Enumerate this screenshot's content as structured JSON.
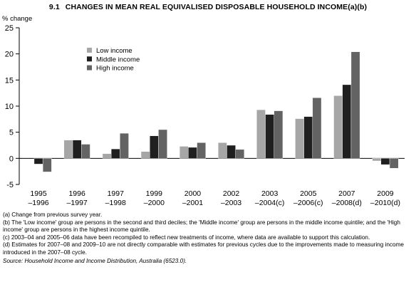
{
  "figure": {
    "number": "9.1",
    "title": "CHANGES IN MEAN REAL EQUIVALISED DISPOSABLE HOUSEHOLD INCOME(a)(b)"
  },
  "chart_data": {
    "type": "bar",
    "title": "CHANGES IN MEAN REAL EQUIVALISED DISPOSABLE HOUSEHOLD INCOME(a)(b)",
    "xlabel": "",
    "ylabel": "% change",
    "ylim": [
      -5,
      25
    ],
    "yticks": [
      -5,
      0,
      5,
      10,
      15,
      20,
      25
    ],
    "grid": false,
    "legend_position": "upper-left",
    "categories": [
      [
        "1995",
        "–1996"
      ],
      [
        "1996",
        "–1997"
      ],
      [
        "1997",
        "–1998"
      ],
      [
        "1999",
        "–2000"
      ],
      [
        "2000",
        "–2001"
      ],
      [
        "2002",
        "–2003"
      ],
      [
        "2003",
        "–2004(c)"
      ],
      [
        "2005",
        "–2006(c)"
      ],
      [
        "2007",
        "–2008(d)"
      ],
      [
        "2009",
        "–2010(d)"
      ]
    ],
    "series": [
      {
        "name": "Low income",
        "color": "#a6a6a6",
        "values": [
          0,
          3.5,
          0.9,
          1.3,
          2.3,
          3.0,
          9.3,
          7.6,
          12.0,
          -0.5
        ]
      },
      {
        "name": "Middle income",
        "color": "#1f1f1f",
        "values": [
          -1.1,
          3.5,
          1.8,
          4.3,
          2.1,
          2.5,
          8.4,
          8.0,
          14.1,
          -1.2
        ]
      },
      {
        "name": "High income",
        "color": "#636363",
        "values": [
          -2.6,
          2.7,
          4.8,
          5.5,
          3.0,
          1.7,
          9.1,
          11.6,
          20.4,
          -1.9
        ]
      }
    ]
  },
  "notes": {
    "a": "(a) Change from previous survey year.",
    "b": "(b) The 'Low income' group are persons in the second and third deciles; the 'Middle income' group are persons in the middle income quintile; and the 'High income' group are persons in the highest income quintile.",
    "c": "(c) 2003–04 and 2005–06 data have been recompiled to reflect new treatments of income, where data are available to support this calculation.",
    "d": "(d) Estimates for 2007–08 and 2009–10 are not directly comparable with estimates for previous cycles due to the improvements made to measuring income introduced in the 2007–08 cycle.",
    "source": "Source: Household Income and Income Distribution, Australia (6523.0)."
  }
}
